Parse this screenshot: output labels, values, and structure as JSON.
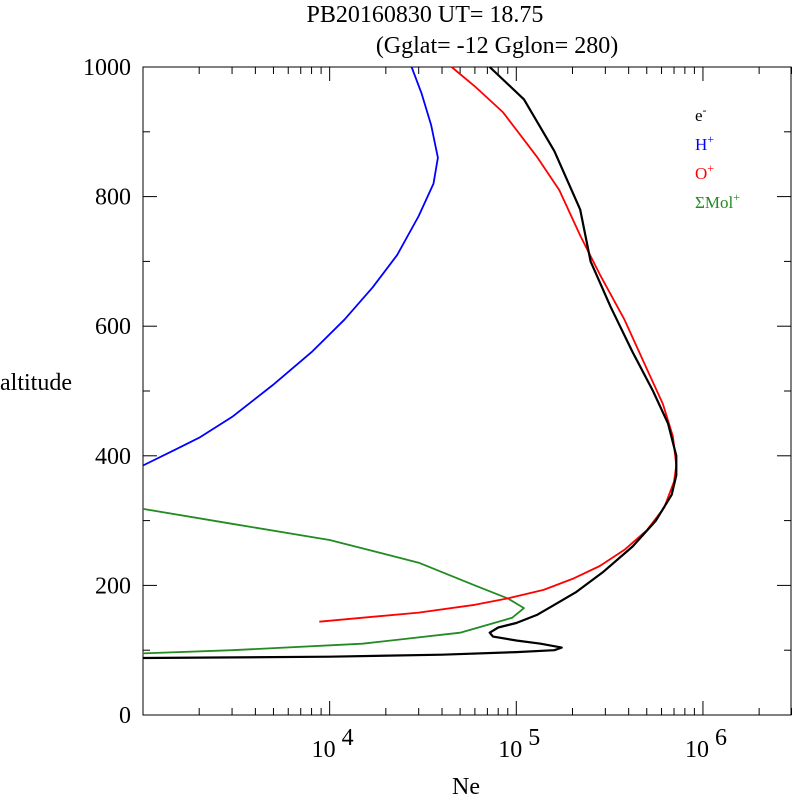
{
  "chart_data": {
    "type": "line",
    "title": "PB20160830   UT=  18.75",
    "subtitle": "(Gglat= -12   Gglon=  280)",
    "xlabel": "Ne",
    "ylabel": "altitude",
    "xscale": "log",
    "xlim": [
      1000,
      3000000
    ],
    "ylim": [
      0,
      1000
    ],
    "xticks": [
      {
        "value": 10000,
        "base": "10",
        "exp": "4"
      },
      {
        "value": 100000,
        "base": "10",
        "exp": "5"
      },
      {
        "value": 1000000,
        "base": "10",
        "exp": "6"
      }
    ],
    "yticks": [
      0,
      200,
      400,
      600,
      800,
      1000
    ],
    "legend_position": "top-right",
    "series": [
      {
        "name": "e-",
        "label_base": "e",
        "label_sup": "-",
        "color": "#000000",
        "points": [
          [
            1000,
            88
          ],
          [
            10000,
            90
          ],
          [
            40000,
            93
          ],
          [
            100000,
            97
          ],
          [
            160000,
            100
          ],
          [
            175000,
            104
          ],
          [
            135000,
            110
          ],
          [
            100000,
            115
          ],
          [
            75000,
            121
          ],
          [
            72000,
            127
          ],
          [
            80000,
            135
          ],
          [
            100000,
            142
          ],
          [
            130000,
            155
          ],
          [
            160000,
            170
          ],
          [
            210000,
            190
          ],
          [
            290000,
            220
          ],
          [
            420000,
            260
          ],
          [
            560000,
            300
          ],
          [
            680000,
            340
          ],
          [
            720000,
            370
          ],
          [
            720000,
            400
          ],
          [
            650000,
            450
          ],
          [
            540000,
            500
          ],
          [
            420000,
            560
          ],
          [
            320000,
            630
          ],
          [
            250000,
            700
          ],
          [
            220000,
            780
          ],
          [
            160000,
            870
          ],
          [
            110000,
            950
          ],
          [
            72000,
            1000
          ]
        ]
      },
      {
        "name": "H+",
        "label_base": "H",
        "label_sup": "+",
        "color": "#0000ff",
        "points": [
          [
            1000,
            385
          ],
          [
            1500,
            410
          ],
          [
            2000,
            428
          ],
          [
            3000,
            460
          ],
          [
            5000,
            510
          ],
          [
            8000,
            560
          ],
          [
            12000,
            610
          ],
          [
            17000,
            660
          ],
          [
            23000,
            710
          ],
          [
            30000,
            770
          ],
          [
            36000,
            820
          ],
          [
            38000,
            860
          ],
          [
            35000,
            910
          ],
          [
            31000,
            960
          ],
          [
            27500,
            1000
          ]
        ]
      },
      {
        "name": "O+",
        "label_base": "O",
        "label_sup": "+",
        "color": "#ff0000",
        "points": [
          [
            8800,
            144
          ],
          [
            30000,
            158
          ],
          [
            60000,
            170
          ],
          [
            90000,
            180
          ],
          [
            140000,
            193
          ],
          [
            200000,
            210
          ],
          [
            280000,
            230
          ],
          [
            380000,
            255
          ],
          [
            500000,
            285
          ],
          [
            620000,
            320
          ],
          [
            700000,
            360
          ],
          [
            720000,
            385
          ],
          [
            690000,
            430
          ],
          [
            610000,
            480
          ],
          [
            490000,
            540
          ],
          [
            380000,
            610
          ],
          [
            280000,
            680
          ],
          [
            220000,
            740
          ],
          [
            170000,
            810
          ],
          [
            130000,
            860
          ],
          [
            85000,
            930
          ],
          [
            60000,
            970
          ],
          [
            45000,
            1000
          ]
        ]
      },
      {
        "name": "ΣMol+",
        "label_base": "ΣMol",
        "label_sup": "+",
        "color": "#228b22",
        "points": [
          [
            1000,
            318
          ],
          [
            3000,
            295
          ],
          [
            10000,
            270
          ],
          [
            30000,
            235
          ],
          [
            60000,
            200
          ],
          [
            90000,
            180
          ],
          [
            110000,
            165
          ],
          [
            95000,
            150
          ],
          [
            50000,
            127
          ],
          [
            15000,
            110
          ],
          [
            3000,
            100
          ],
          [
            1000,
            95
          ]
        ]
      }
    ]
  }
}
